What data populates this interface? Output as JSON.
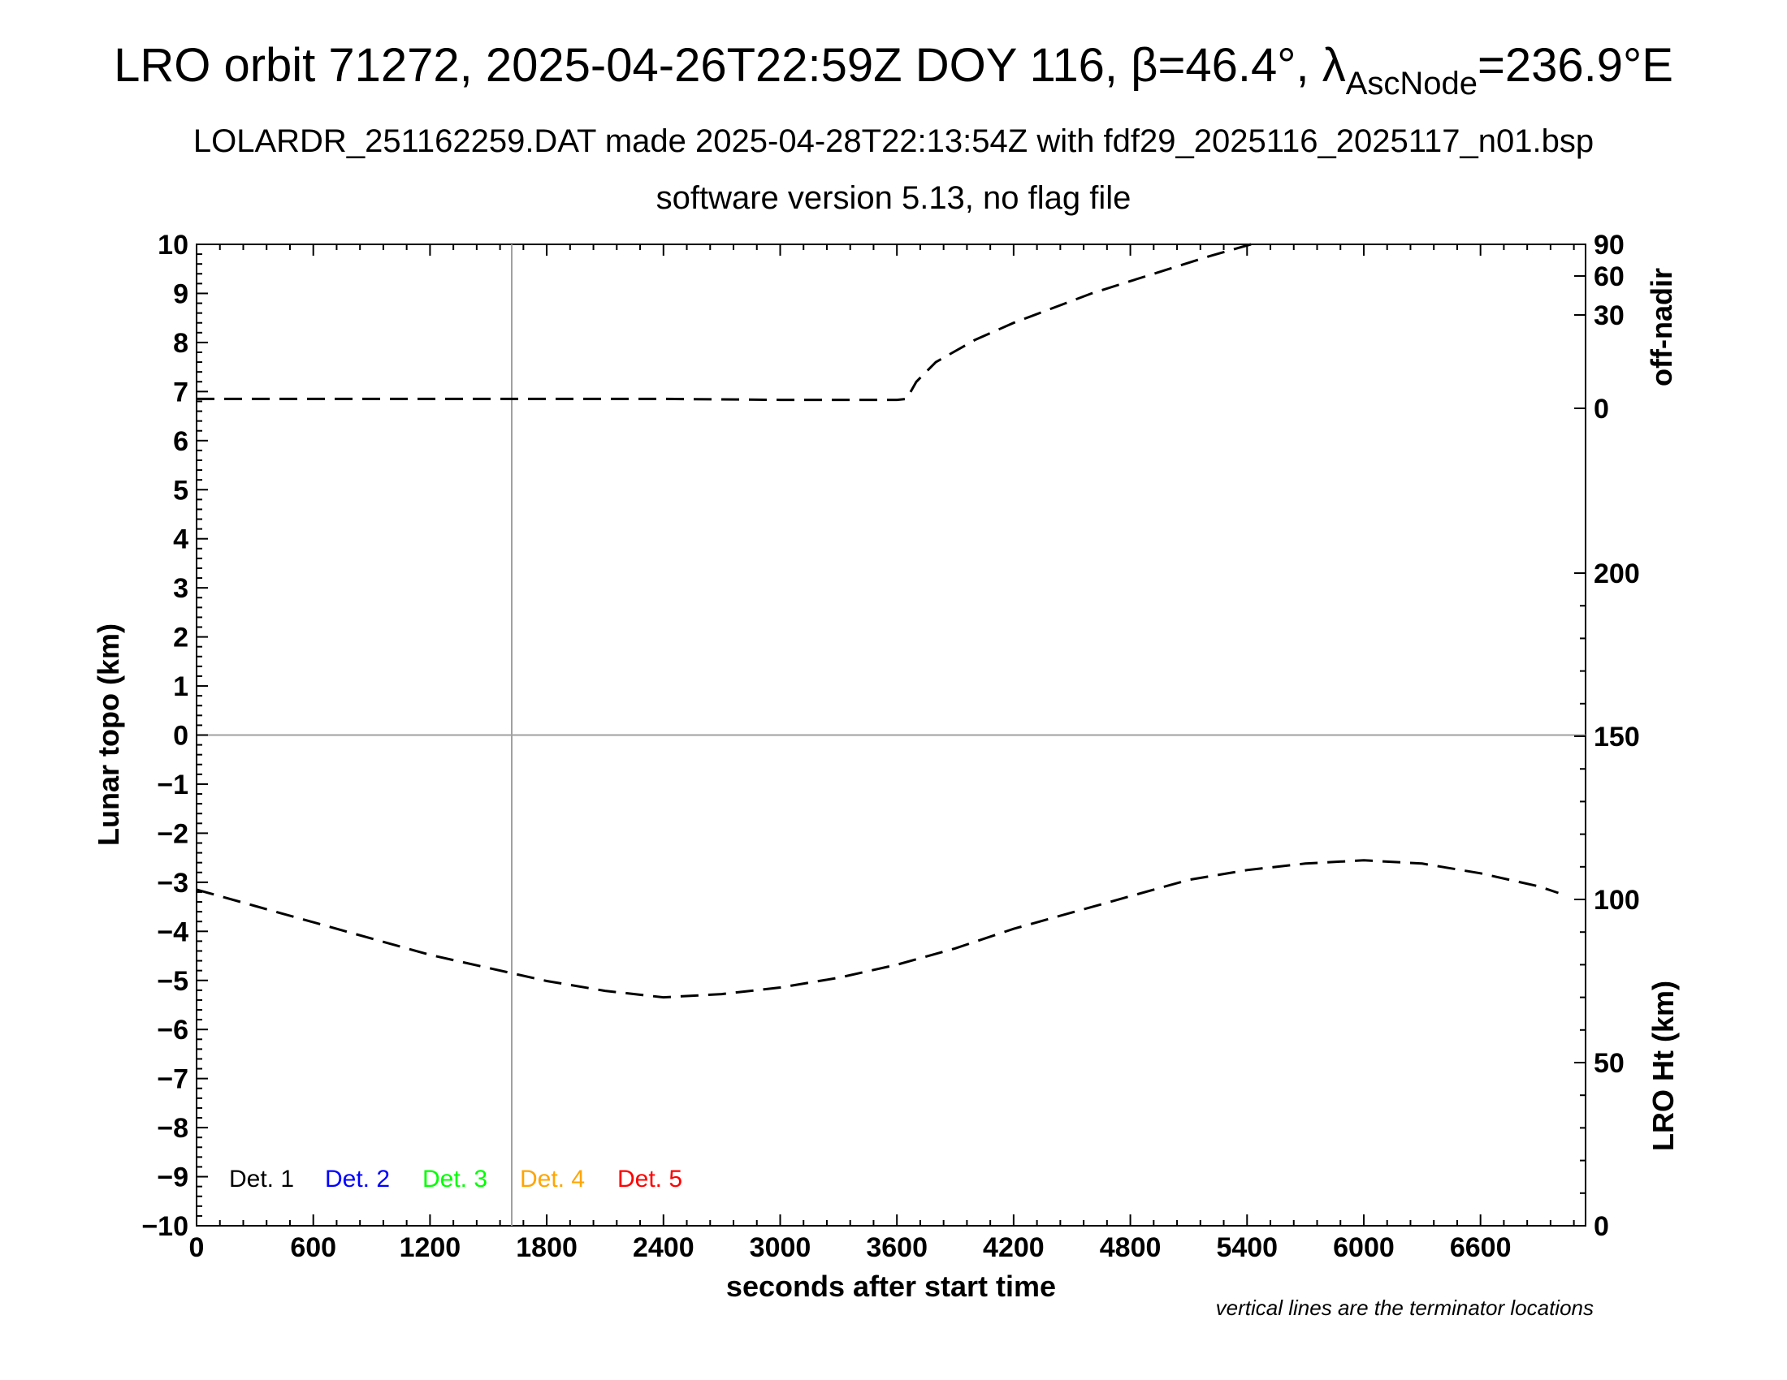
{
  "title": {
    "line1_main": "LRO orbit 71272, 2025-04-26T22:59Z DOY 116, β=46.4°, λ",
    "line1_sub": "AscNode",
    "line1_tail": "=236.9°E",
    "line2": "LOLARDR_251162259.DAT made 2025-04-28T22:13:54Z with fdf29_2025116_2025117_n01.bsp",
    "line3": "software version 5.13, no flag file"
  },
  "note": "vertical lines are the terminator locations",
  "chart_data": {
    "type": "line",
    "xlabel": "seconds after start time",
    "ylabel": "Lunar topo (km)",
    "xlim": [
      0,
      7140
    ],
    "ylim": [
      -10,
      10
    ],
    "x_ticks": [
      "0",
      "600",
      "1200",
      "1800",
      "2400",
      "3000",
      "3600",
      "4200",
      "4800",
      "5400",
      "6000",
      "6600"
    ],
    "y_ticks": [
      "10",
      "9",
      "8",
      "7",
      "6",
      "5",
      "4",
      "3",
      "2",
      "1",
      "0",
      "−1",
      "−2",
      "−3",
      "−4",
      "−5",
      "−6",
      "−7",
      "−8",
      "−9",
      "−10"
    ],
    "right_axis_top": {
      "label": "off-nadir",
      "ticks": [
        "90",
        "60",
        "30",
        "0"
      ]
    },
    "right_axis_bottom": {
      "label": "LRO Ht (km)",
      "ticks": [
        "200",
        "150",
        "100",
        "50",
        "0"
      ],
      "range": [
        0,
        200
      ]
    },
    "terminator_lines_x": [
      1620
    ],
    "zero_line_y": 0,
    "legend": [
      {
        "label": "Det. 1",
        "color": "#000000"
      },
      {
        "label": "Det. 2",
        "color": "#0000ff"
      },
      {
        "label": "Det. 3",
        "color": "#00ff00"
      },
      {
        "label": "Det. 4",
        "color": "#ffa500"
      },
      {
        "label": "Det. 5",
        "color": "#ff0000"
      }
    ],
    "series": [
      {
        "style": "dashed",
        "axis": "left",
        "x": [
          0,
          600,
          1200,
          1800,
          2400,
          3000,
          3600,
          3650,
          3700,
          3800,
          4000,
          4200,
          4400,
          4600,
          4800,
          5000,
          5200,
          5420
        ],
        "values": [
          6.85,
          6.85,
          6.85,
          6.85,
          6.85,
          6.83,
          6.83,
          6.85,
          7.2,
          7.6,
          8.05,
          8.4,
          8.7,
          9.0,
          9.25,
          9.5,
          9.75,
          10.0
        ]
      },
      {
        "style": "dashed",
        "axis": "right_bottom",
        "x": [
          0,
          300,
          600,
          900,
          1200,
          1500,
          1800,
          2100,
          2400,
          2700,
          3000,
          3300,
          3600,
          3900,
          4200,
          4500,
          4800,
          5100,
          5400,
          5700,
          6000,
          6300,
          6600,
          6900,
          7000
        ],
        "values": [
          103,
          98,
          93,
          88,
          83,
          79,
          75,
          72,
          70,
          71,
          73,
          76,
          80,
          85,
          91,
          96,
          101,
          106,
          109,
          111,
          112,
          111,
          108,
          104,
          102
        ]
      }
    ]
  }
}
